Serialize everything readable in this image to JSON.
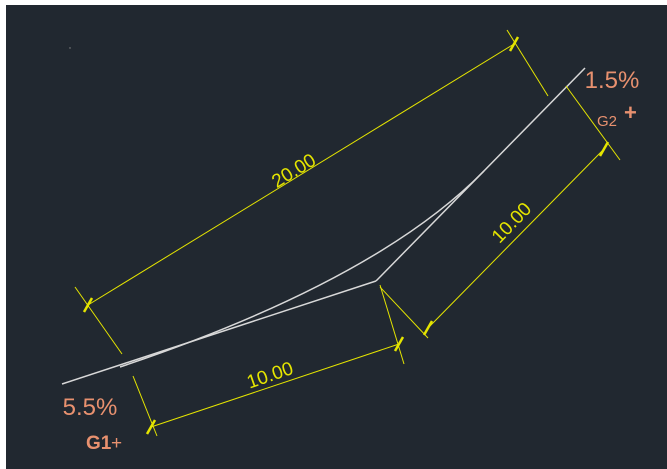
{
  "drawing": {
    "dimensions": {
      "overall": "20.00",
      "right_half": "10.00",
      "bottom_half": "10.00"
    },
    "grades": {
      "start_grade": "5.5%",
      "end_grade": "1.5%"
    },
    "points": {
      "g1_label": "G1",
      "g2_label": "G2",
      "marker_glyph": "+"
    },
    "colors": {
      "background": "#212830",
      "dimension": "#e5e500",
      "curve": "#d8d8d8",
      "annotation": "#e8916f"
    }
  }
}
